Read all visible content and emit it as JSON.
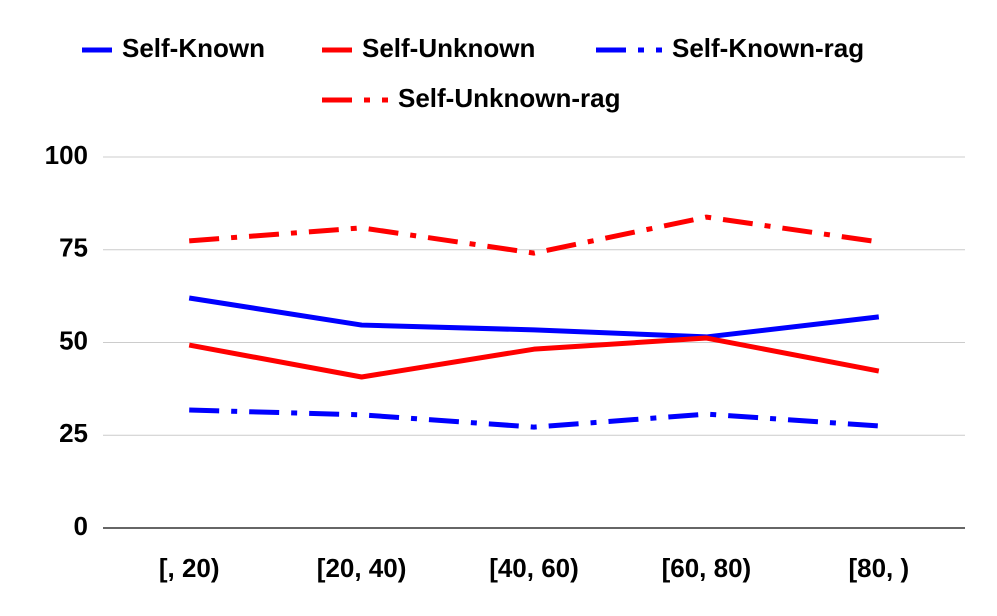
{
  "chart_data": {
    "type": "line",
    "categories": [
      "[, 20)",
      "[20, 40)",
      "[40, 60)",
      "[60, 80)",
      "[80, )"
    ],
    "series": [
      {
        "name": "Self-Known",
        "color": "#0000ff",
        "style": "solid",
        "values": [
          62,
          54.7,
          53.4,
          51.5,
          56.9
        ]
      },
      {
        "name": "Self-Unknown",
        "color": "#ff0000",
        "style": "solid",
        "values": [
          49.3,
          40.7,
          48.2,
          51.2,
          42.3
        ]
      },
      {
        "name": "Self-Known-rag",
        "color": "#0000ff",
        "style": "dashdot",
        "values": [
          31.8,
          30.5,
          27.2,
          30.7,
          27.5
        ]
      },
      {
        "name": "Self-Unknown-rag",
        "color": "#ff0000",
        "style": "dashdot",
        "values": [
          77.4,
          80.9,
          74.1,
          83.8,
          77.1
        ]
      }
    ],
    "ylim": [
      0,
      100
    ],
    "yticks": [
      0,
      25,
      50,
      75,
      100
    ],
    "grid": true
  }
}
